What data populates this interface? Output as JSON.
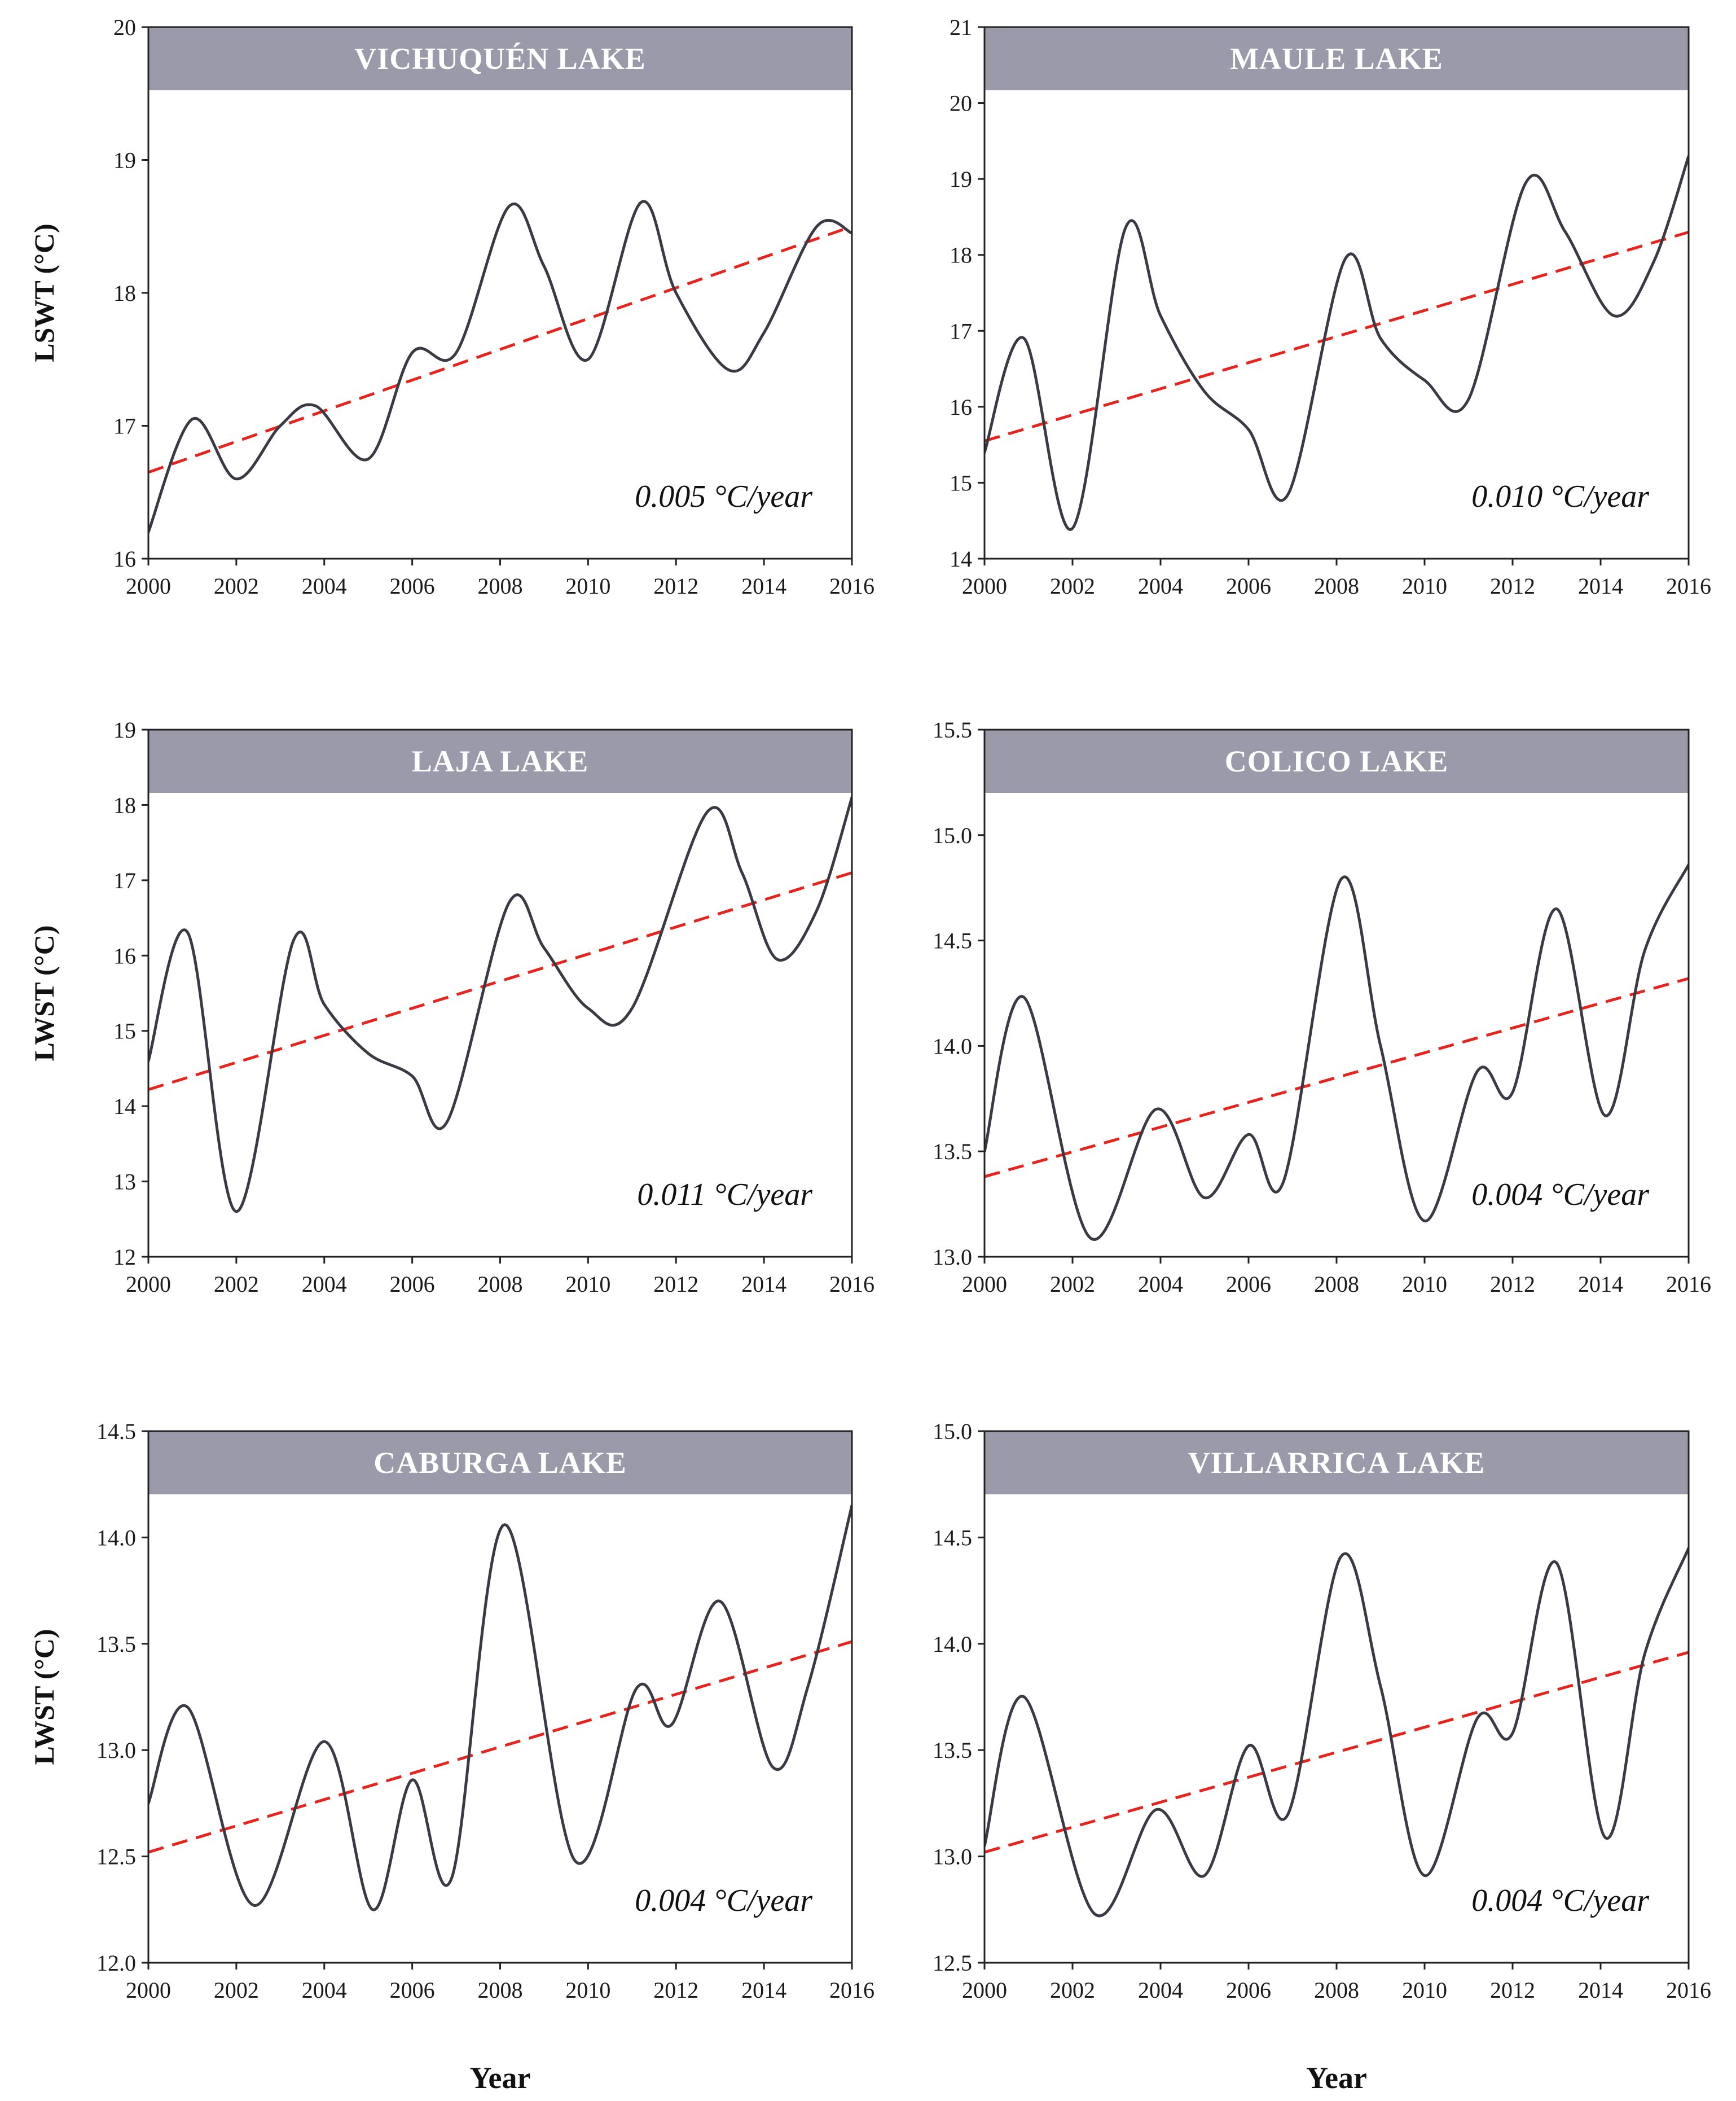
{
  "colors": {
    "banner": "#9b9aaa",
    "series": "#3a3a44",
    "trend": "#e8231c"
  },
  "chart_data": [
    {
      "type": "line",
      "title": "VICHUQUÉN LAKE",
      "ylabel": "LSWT (°C)",
      "xlabel": "",
      "annotation": "0.005 °C/year",
      "xlim": [
        2000,
        2016
      ],
      "ylim": [
        16,
        20
      ],
      "yticks": [
        "16",
        "17",
        "18",
        "19",
        "20"
      ],
      "xticks": [
        "2000",
        "2002",
        "2004",
        "2006",
        "2008",
        "2010",
        "2012",
        "2014",
        "2016"
      ],
      "series": [
        {
          "x": [
            2000,
            2001,
            2002,
            2003,
            2003.8,
            2005,
            2006,
            2007,
            2008.2,
            2009,
            2010,
            2011.2,
            2012,
            2013.2,
            2014,
            2015.2,
            2016
          ],
          "y": [
            16.2,
            17.05,
            16.6,
            17.0,
            17.15,
            16.75,
            17.55,
            17.55,
            18.65,
            18.2,
            17.5,
            18.68,
            18.0,
            17.42,
            17.7,
            18.5,
            18.45
          ]
        }
      ],
      "trend": {
        "x": [
          2000,
          2016
        ],
        "y": [
          16.65,
          18.5
        ]
      }
    },
    {
      "type": "line",
      "title": "MAULE LAKE",
      "ylabel": "",
      "xlabel": "",
      "annotation": "0.010 °C/year",
      "xlim": [
        2000,
        2016
      ],
      "ylim": [
        14,
        21
      ],
      "yticks": [
        "14",
        "15",
        "16",
        "17",
        "18",
        "19",
        "20",
        "21"
      ],
      "xticks": [
        "2000",
        "2002",
        "2004",
        "2006",
        "2008",
        "2010",
        "2012",
        "2014",
        "2016"
      ],
      "series": [
        {
          "x": [
            2000,
            2000.9,
            2002,
            2003.2,
            2004,
            2005,
            2006,
            2006.9,
            2008.2,
            2009,
            2010,
            2011,
            2012.3,
            2013.2,
            2014.3,
            2015.2,
            2016
          ],
          "y": [
            15.4,
            16.9,
            14.4,
            18.35,
            17.2,
            16.2,
            15.7,
            14.85,
            17.95,
            16.9,
            16.35,
            16.1,
            18.95,
            18.3,
            17.2,
            17.9,
            19.3
          ]
        }
      ],
      "trend": {
        "x": [
          2000,
          2016
        ],
        "y": [
          15.55,
          18.3
        ]
      }
    },
    {
      "type": "line",
      "title": "LAJA LAKE",
      "ylabel": "LWST (°C)",
      "xlabel": "",
      "annotation": "0.011 °C/year",
      "xlim": [
        2000,
        2016
      ],
      "ylim": [
        12,
        19
      ],
      "yticks": [
        "12",
        "13",
        "14",
        "15",
        "16",
        "17",
        "18",
        "19"
      ],
      "xticks": [
        "2000",
        "2002",
        "2004",
        "2006",
        "2008",
        "2010",
        "2012",
        "2014",
        "2016"
      ],
      "series": [
        {
          "x": [
            2000,
            2000.9,
            2002,
            2003.3,
            2004,
            2005,
            2006,
            2006.8,
            2008.2,
            2009,
            2010,
            2011,
            2012.7,
            2013.5,
            2014.3,
            2015.2,
            2016
          ],
          "y": [
            14.6,
            16.3,
            12.6,
            16.2,
            15.35,
            14.7,
            14.4,
            13.8,
            16.7,
            16.1,
            15.3,
            15.3,
            17.9,
            17.1,
            15.95,
            16.6,
            18.1
          ]
        }
      ],
      "trend": {
        "x": [
          2000,
          2016
        ],
        "y": [
          14.22,
          17.1
        ]
      }
    },
    {
      "type": "line",
      "title": "COLICO LAKE",
      "ylabel": "",
      "xlabel": "",
      "annotation": "0.004 °C/year",
      "xlim": [
        2000,
        2016
      ],
      "ylim": [
        13.0,
        15.5
      ],
      "yticks": [
        "13.0",
        "13.5",
        "14.0",
        "14.5",
        "15.0",
        "15.5"
      ],
      "xticks": [
        "2000",
        "2002",
        "2004",
        "2006",
        "2008",
        "2010",
        "2012",
        "2014",
        "2016"
      ],
      "series": [
        {
          "x": [
            2000,
            2000.9,
            2002.4,
            2003.9,
            2005,
            2006,
            2006.8,
            2008.1,
            2009,
            2010,
            2011.2,
            2012,
            2013,
            2014.1,
            2015,
            2016
          ],
          "y": [
            13.5,
            14.23,
            13.09,
            13.7,
            13.28,
            13.58,
            13.36,
            14.79,
            14.0,
            13.17,
            13.88,
            13.78,
            14.65,
            13.67,
            14.45,
            14.86
          ]
        }
      ],
      "trend": {
        "x": [
          2000,
          2016
        ],
        "y": [
          13.38,
          14.32
        ]
      }
    },
    {
      "type": "line",
      "title": "CABURGA LAKE",
      "ylabel": "LWST (°C)",
      "xlabel": "Year",
      "annotation": "0.004 °C/year",
      "xlim": [
        2000,
        2016
      ],
      "ylim": [
        12.0,
        14.5
      ],
      "yticks": [
        "12.0",
        "12.5",
        "13.0",
        "13.5",
        "14.0",
        "14.5"
      ],
      "xticks": [
        "2000",
        "2002",
        "2004",
        "2006",
        "2008",
        "2010",
        "2012",
        "2014",
        "2016"
      ],
      "series": [
        {
          "x": [
            2000,
            2000.9,
            2002.4,
            2004,
            2005.1,
            2006,
            2006.9,
            2008.1,
            2009.7,
            2011.1,
            2011.9,
            2013,
            2014.2,
            2015,
            2016
          ],
          "y": [
            12.75,
            13.2,
            12.27,
            13.04,
            12.25,
            12.86,
            12.4,
            14.06,
            12.48,
            13.29,
            13.12,
            13.7,
            12.92,
            13.3,
            14.15
          ]
        }
      ],
      "trend": {
        "x": [
          2000,
          2016
        ],
        "y": [
          12.52,
          13.51
        ]
      }
    },
    {
      "type": "line",
      "title": "VILLARRICA LAKE",
      "ylabel": "",
      "xlabel": "Year",
      "annotation": "0.004 °C/year",
      "xlim": [
        2000,
        2016
      ],
      "ylim": [
        12.5,
        15.0
      ],
      "yticks": [
        "12.5",
        "13.0",
        "13.5",
        "14.0",
        "14.5",
        "15.0"
      ],
      "xticks": [
        "2000",
        "2002",
        "2004",
        "2006",
        "2008",
        "2010",
        "2012",
        "2014",
        "2016"
      ],
      "series": [
        {
          "x": [
            2000,
            2000.9,
            2002.5,
            2003.9,
            2005,
            2006,
            2006.9,
            2008.1,
            2009,
            2010,
            2011.2,
            2012,
            2013,
            2014.1,
            2015,
            2016
          ],
          "y": [
            13.05,
            13.75,
            12.73,
            13.22,
            12.91,
            13.52,
            13.2,
            14.41,
            13.8,
            12.91,
            13.65,
            13.58,
            14.38,
            13.09,
            13.95,
            14.45
          ]
        }
      ],
      "trend": {
        "x": [
          2000,
          2016
        ],
        "y": [
          13.02,
          13.96
        ]
      }
    }
  ]
}
